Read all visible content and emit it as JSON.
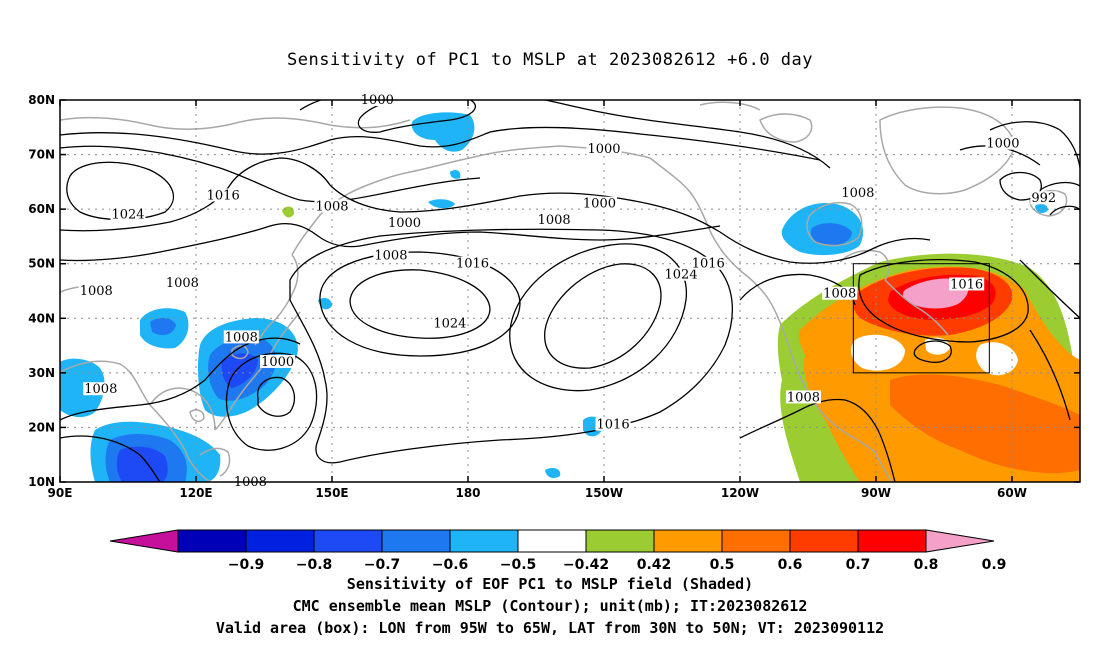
{
  "title": "Sensitivity of PC1 to MSLP at 2023082612 +6.0 day",
  "map": {
    "lon_ticks": [
      "90E",
      "120E",
      "150E",
      "180",
      "150W",
      "120W",
      "90W",
      "60W"
    ],
    "lat_ticks": [
      "80N",
      "70N",
      "60N",
      "50N",
      "40N",
      "30N",
      "20N",
      "10N"
    ],
    "lon_range": [
      90,
      315
    ],
    "lat_range": [
      10,
      80
    ],
    "grid": "dotted",
    "box": {
      "lon": [
        265,
        295
      ],
      "lat": [
        30,
        50
      ]
    },
    "contour_labels": [
      {
        "text": "1000",
        "lon": 160,
        "lat": 80
      },
      {
        "text": "1000",
        "lon": 210,
        "lat": 71
      },
      {
        "text": "1000",
        "lon": 298,
        "lat": 72
      },
      {
        "text": "1016",
        "lon": 126,
        "lat": 62.5
      },
      {
        "text": "1008",
        "lon": 150,
        "lat": 60.5
      },
      {
        "text": "1024",
        "lon": 105,
        "lat": 59
      },
      {
        "text": "1000",
        "lon": 209,
        "lat": 61
      },
      {
        "text": "1008",
        "lon": 199,
        "lat": 58
      },
      {
        "text": "1000",
        "lon": 166,
        "lat": 57.5
      },
      {
        "text": "1008",
        "lon": 266,
        "lat": 63
      },
      {
        "text": "992",
        "lon": 307,
        "lat": 62
      },
      {
        "text": "1008",
        "lon": 163,
        "lat": 51.5
      },
      {
        "text": "1016",
        "lon": 181,
        "lat": 50
      },
      {
        "text": "1024",
        "lon": 227,
        "lat": 48
      },
      {
        "text": "1016",
        "lon": 233,
        "lat": 50
      },
      {
        "text": "1008",
        "lon": 98,
        "lat": 45
      },
      {
        "text": "1008",
        "lon": 117,
        "lat": 46.5
      },
      {
        "text": "1024",
        "lon": 176,
        "lat": 39
      },
      {
        "text": "1008",
        "lon": 262,
        "lat": 44.5
      },
      {
        "text": "1016",
        "lon": 290,
        "lat": 46.2
      },
      {
        "text": "1008",
        "lon": 130,
        "lat": 36.5
      },
      {
        "text": "1000",
        "lon": 138,
        "lat": 32
      },
      {
        "text": "1008",
        "lon": 99,
        "lat": 27
      },
      {
        "text": "1008",
        "lon": 254,
        "lat": 25.5
      },
      {
        "text": "1016",
        "lon": 212,
        "lat": 20.5
      },
      {
        "text": "1008",
        "lon": 132,
        "lat": 10
      }
    ]
  },
  "colorbar": {
    "labels": [
      "-0.9",
      "-0.8",
      "-0.7",
      "-0.6",
      "-0.5",
      "-0.42",
      "0.42",
      "0.5",
      "0.6",
      "0.7",
      "0.8",
      "0.9"
    ],
    "colors": [
      "#0000b8",
      "#0022e0",
      "#1e4af5",
      "#1e78f0",
      "#1eb4f5",
      "#ffffff",
      "#9bcd32",
      "#ff9a00",
      "#ff6e00",
      "#ff3c00",
      "#ff0000"
    ],
    "low_end_color": "#c4109a",
    "high_end_color": "#f5a0c8"
  },
  "captions": [
    "Sensitivity of EOF PC1 to MSLP field (Shaded)",
    "CMC ensemble mean MSLP (Contour); unit(mb); IT:2023082612",
    "Valid area (box): LON from 95W to 65W, LAT from 30N to 50N; VT: 2023090112"
  ]
}
